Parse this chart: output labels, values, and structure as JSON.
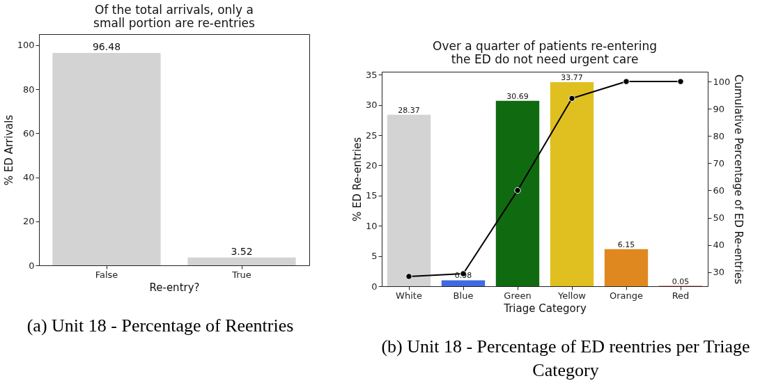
{
  "chart_data": [
    {
      "type": "bar",
      "title": "Of the total arrivals, only a small portion are re-entries",
      "xlabel": "Re-entry?",
      "ylabel": "% ED Arrivals",
      "categories": [
        "False",
        "True"
      ],
      "values": [
        96.48,
        3.52
      ],
      "color": "#d3d3d3",
      "ylim": [
        0,
        105
      ],
      "yticks": [
        0,
        20,
        40,
        60,
        80,
        100
      ],
      "data_labels": true,
      "grid": false,
      "legend": false,
      "annotations": [
        "(a) Unit 18 - Percentage of Reentries"
      ]
    },
    {
      "type": "bar",
      "title": "Over a quarter of patients re-entering the ED do not need urgent care",
      "xlabel": "Triage Category",
      "ylabel": "% ED Re-entries",
      "y2label": "Cumulative Percentage of ED Re-entries",
      "categories": [
        "White",
        "Blue",
        "Green",
        "Yellow",
        "Orange",
        "Red"
      ],
      "series": [
        {
          "type": "bar",
          "colors": [
            "#d3d3d3",
            "#4169e1",
            "#106b10",
            "#e0c020",
            "#e08820",
            "#d62728"
          ],
          "values": [
            28.37,
            0.98,
            30.69,
            33.77,
            6.15,
            0.05
          ],
          "value_labels": [
            "28.37",
            "0.98",
            "30.69",
            "33.77",
            "6.15",
            "0.05"
          ]
        },
        {
          "type": "line",
          "axis": "y2",
          "color": "#000000",
          "marker": "circle",
          "values": [
            28.4,
            29.4,
            60.0,
            93.8,
            100.0,
            100.0
          ]
        }
      ],
      "ylim": [
        0,
        35.5
      ],
      "yticks": [
        0,
        5,
        10,
        15,
        20,
        25,
        30,
        35
      ],
      "y2lim": [
        24.8,
        103.6
      ],
      "y2ticks": [
        30,
        40,
        50,
        60,
        70,
        80,
        90,
        100
      ],
      "grid": false,
      "legend": false,
      "annotations": [
        "(b) Unit 18 - Percentage of ED reentries per Triage Category"
      ]
    }
  ]
}
